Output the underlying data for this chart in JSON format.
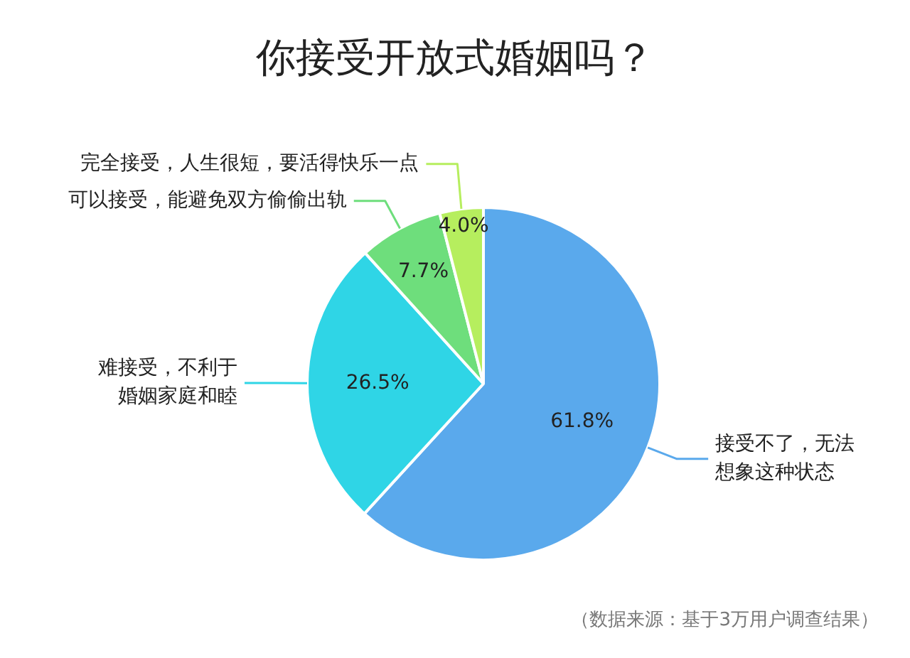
{
  "chart_data": {
    "type": "pie",
    "title": "你接受开放式婚姻吗？",
    "categories": [
      "接受不了，无法想象这种状态",
      "难接受，不利于婚姻家庭和睦",
      "可以接受，能避免双方偷偷出轨",
      "完全接受，人生很短，要活得快乐一点"
    ],
    "values": [
      61.8,
      26.5,
      7.7,
      4.0
    ],
    "colors": [
      "#5aa9ec",
      "#2fd5e6",
      "#6ede7c",
      "#b6ee5e"
    ],
    "value_labels": [
      "61.8%",
      "26.5%",
      "7.7%",
      "4.0%"
    ],
    "legend": false,
    "annotations": [
      "（数据来源：基于3万用户调查结果）"
    ]
  }
}
